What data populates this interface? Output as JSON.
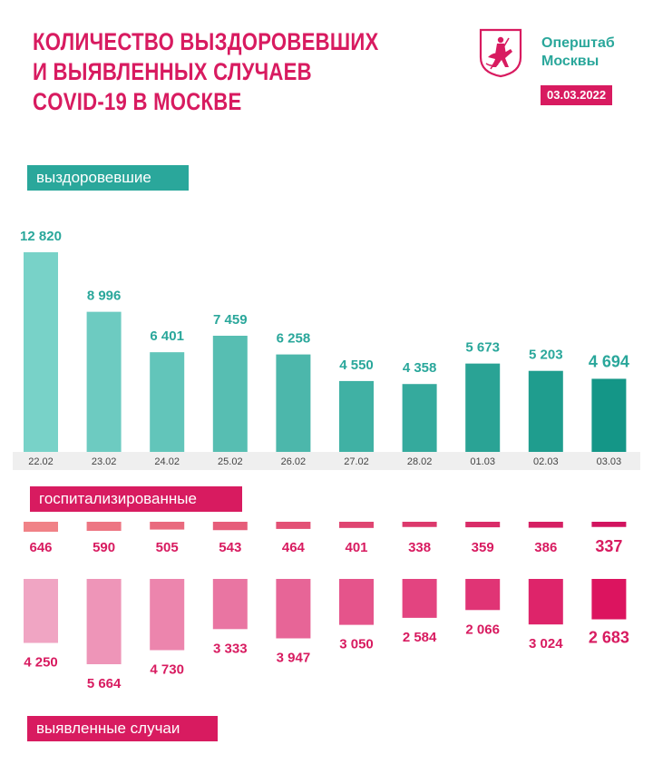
{
  "header": {
    "title_lines": [
      "Количество выздоровевших",
      "и выявленных случаев",
      "COVID-19 в Москве"
    ],
    "brand_line1": "Оперштаб",
    "brand_line2": "Москвы",
    "date": "03.03.2022",
    "logo_icon": "moscow-coat-of-arms-icon"
  },
  "labels": {
    "recovered": "выздоровевшие",
    "hospitalized": "госпитализированные",
    "cases": "выявленные случаи"
  },
  "colors": {
    "accent_pink": "#d81b60",
    "accent_teal": "#2aa79b"
  },
  "chart_data": {
    "type": "bar",
    "categories": [
      "22.02",
      "23.02",
      "24.02",
      "25.02",
      "26.02",
      "27.02",
      "28.02",
      "01.03",
      "02.03",
      "03.03"
    ],
    "series": [
      {
        "name": "выздоровевшие",
        "values": [
          12820,
          8996,
          6401,
          7459,
          6258,
          4550,
          4358,
          5673,
          5203,
          4694
        ],
        "labels": [
          "12 820",
          "8 996",
          "6 401",
          "7 459",
          "6 258",
          "4 550",
          "4 358",
          "5 673",
          "5 203",
          "4 694"
        ]
      },
      {
        "name": "госпитализированные",
        "values": [
          646,
          590,
          505,
          543,
          464,
          401,
          338,
          359,
          386,
          337
        ],
        "labels": [
          "646",
          "590",
          "505",
          "543",
          "464",
          "401",
          "338",
          "359",
          "386",
          "337"
        ]
      },
      {
        "name": "выявленные случаи",
        "values": [
          4250,
          5664,
          4730,
          3333,
          3947,
          3050,
          2584,
          2066,
          3024,
          2683
        ],
        "labels": [
          "4 250",
          "5 664",
          "4 730",
          "3 333",
          "3 947",
          "3 050",
          "2 584",
          "2 066",
          "3 024",
          "2 683"
        ]
      }
    ],
    "title": "Количество выздоровевших и выявленных случаев COVID-19 в Москве",
    "xlabel": "",
    "ylabel": ""
  }
}
